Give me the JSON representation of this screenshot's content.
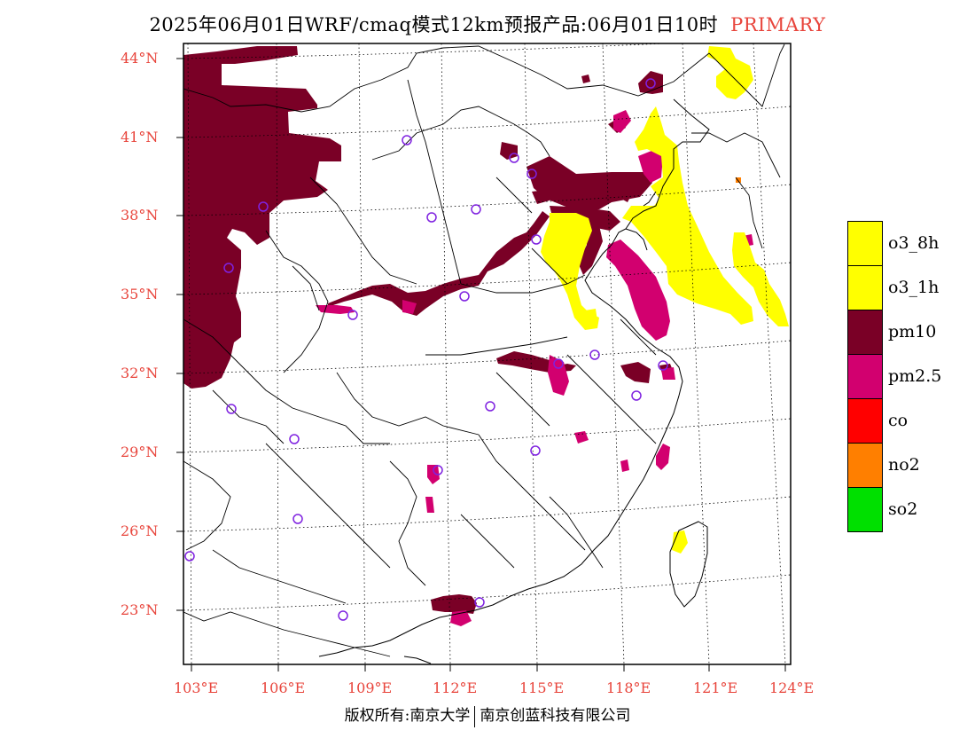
{
  "title": {
    "text": "2025年06月01日WRF/cmaq模式12km预报产品:06月01日10时",
    "tag": "PRIMARY"
  },
  "latitude_labels": [
    "44°N",
    "41°N",
    "38°N",
    "35°N",
    "32°N",
    "29°N",
    "26°N",
    "23°N"
  ],
  "longitude_labels": [
    "103°E",
    "106°E",
    "109°E",
    "112°E",
    "115°E",
    "118°E",
    "121°E",
    "124°E"
  ],
  "credit": {
    "left": "版权所有:南京大学",
    "right": "南京创蓝科技有限公司"
  },
  "legend": [
    {
      "label": "o3_8h",
      "color": "#ffff00"
    },
    {
      "label": "o3_1h",
      "color": "#ffff00"
    },
    {
      "label": "pm10",
      "color": "#7a0026"
    },
    {
      "label": "pm2.5",
      "color": "#d2006f"
    },
    {
      "label": "co",
      "color": "#ff0000"
    },
    {
      "label": "no2",
      "color": "#ff7f00"
    },
    {
      "label": "so2",
      "color": "#00e000"
    }
  ],
  "colors": {
    "label": "#e8453c",
    "station": "#7f22e0",
    "o3": "#ffff00",
    "pm10": "#7a0026",
    "pm25": "#d2006f",
    "no2": "#ff7f00"
  }
}
